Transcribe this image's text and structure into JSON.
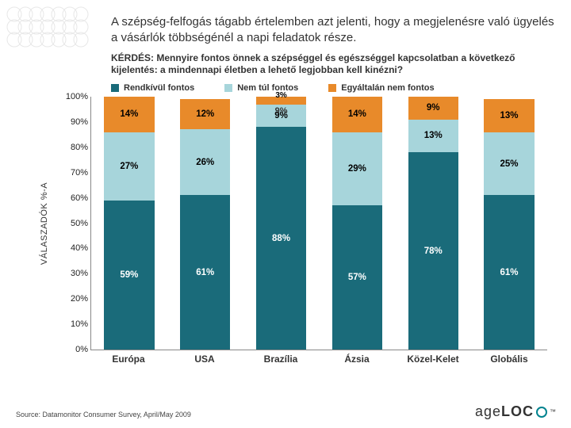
{
  "title": "A szépség-felfogás tágabb értelemben azt jelenti, hogy a megjelenésre való ügyelés a vásárlók többségénél a napi feladatok része.",
  "question": "KÉRDÉS: Mennyire fontos önnek a szépséggel és egészséggel kapcsolatban a következő kijelentés: a mindennapi életben a lehető legjobban kell kinézni?",
  "source": "Source: Datamonitor Consumer Survey, April/May 2009",
  "logo": {
    "brand_pre": "age",
    "brand_bold": "LOC"
  },
  "chart": {
    "type": "stacked-bar-100",
    "ylabel": "VÁLASZADÓK %-A",
    "ylim": [
      0,
      100
    ],
    "ytick_step": 10,
    "ytick_suffix": "%",
    "background_color": "#ffffff",
    "bar_width_pct": 66,
    "series": [
      {
        "key": "rendkivul",
        "label": "Rendkívül fontos",
        "color": "#1a6b7a",
        "text_light": false
      },
      {
        "key": "nemtul",
        "label": "Nem túl fontos",
        "color": "#a7d5db",
        "text_light": true
      },
      {
        "key": "egyaltalan",
        "label": "Egyáltalán nem fontos",
        "color": "#e88a2a",
        "text_light": true
      }
    ],
    "categories": [
      "Európa",
      "USA",
      "Brazília",
      "Ázsia",
      "Közel-Kelet",
      "Globális"
    ],
    "data": {
      "rendkivul": [
        59,
        61,
        88,
        57,
        78,
        61
      ],
      "nemtul": [
        27,
        26,
        9,
        29,
        13,
        25
      ],
      "egyaltalan": [
        14,
        12,
        3,
        14,
        9,
        13
      ]
    },
    "extra_labels": {
      "2": {
        "below_top": "9%"
      }
    }
  }
}
